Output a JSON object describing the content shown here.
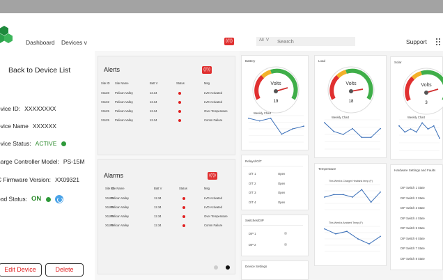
{
  "nav": {
    "dashboard": "Dashboard",
    "devices": "Devices",
    "devices_caret": "v",
    "alarm_badge": "((!))",
    "search_scope": "All",
    "search_caret": "V",
    "search_placeholder": "Search",
    "support": "Support"
  },
  "device": {
    "back": "Back to Device List",
    "id_label": "evice ID:",
    "id_value": "XXXXXXXX",
    "name_label": "evice Name",
    "name_value": "XXXXXX",
    "status_label": "evice Status:",
    "status_value": "ACTIVE",
    "model_label": "harge Controller Model:",
    "model_value": "PS-15M",
    "firmware_label": "C Firmware Version:",
    "firmware_value": "XX09321",
    "load_label": "oad Status:",
    "load_value": "ON",
    "edit": "Edit Device",
    "delete": "Delete"
  },
  "alerts": {
    "title": "Alerts",
    "badge": "((!))",
    "headers": [
      "Site ID",
      "Site Name",
      "Batt V",
      "Status",
      "Msg"
    ],
    "rows": [
      {
        "id": "X1128",
        "name": "Pelican Valley",
        "batt": "12.34",
        "msg": "LVD Activated"
      },
      {
        "id": "X1132",
        "name": "Pelican Valley",
        "batt": "12.34",
        "msg": "LVD Activated"
      },
      {
        "id": "X1125",
        "name": "Pelican Valley",
        "batt": "12.34",
        "msg": "Over Temperature"
      },
      {
        "id": "X1125",
        "name": "Pelican Valley",
        "batt": "12.34",
        "msg": "Comm Failure"
      }
    ]
  },
  "alarms": {
    "title": "Alarms",
    "badge": "((!))",
    "headers": [
      "Site ID",
      "Site Name",
      "Batt V",
      "Status",
      "Msg"
    ],
    "rows": [
      {
        "id": "X1103",
        "name": "Pelican Valley",
        "batt": "12.34",
        "msg": "LVD Activated"
      },
      {
        "id": "X1103",
        "name": "Pelican Valley",
        "batt": "12.34",
        "msg": "LVD Activated"
      },
      {
        "id": "X1103",
        "name": "Pelican Valley",
        "batt": "12.34",
        "msg": "Over Temperature"
      },
      {
        "id": "X1102",
        "name": "Pelican Valley",
        "batt": "12.34",
        "msg": "Comm Failure"
      }
    ]
  },
  "cards": {
    "battery": {
      "title": "Battery",
      "gauge_label": "Volts",
      "gauge_value": "19",
      "chart_title": "Weekly Chart",
      "values": [
        9,
        8,
        9,
        3,
        5,
        6
      ]
    },
    "load": {
      "title": "Load",
      "gauge_label": "Volts",
      "gauge_value": "18",
      "chart_title": "Weekly Chart",
      "values": [
        9,
        6,
        5,
        7,
        4,
        4,
        7
      ]
    },
    "solar": {
      "title": "Solar",
      "gauge_label": "Volts",
      "gauge_value": "3",
      "chart_title": "Weekly Chart",
      "values": [
        8,
        6,
        7,
        6,
        9,
        7,
        8,
        4
      ]
    },
    "relays": {
      "title": "Relays/IO/T",
      "items": [
        {
          "label": "O/T 1",
          "value": "Open"
        },
        {
          "label": "O/T 2",
          "value": "Open"
        },
        {
          "label": "O/T 3",
          "value": "Open"
        },
        {
          "label": "O/T 4",
          "value": "Open"
        }
      ]
    },
    "switches": {
      "title": "Switches/DIP",
      "items": [
        {
          "label": "DIP 1"
        },
        {
          "label": "DIP 2"
        }
      ]
    },
    "device_settings": {
      "title": "Device Settings"
    },
    "temperature": {
      "title": "Temperature",
      "chart1_title": "This Week's Charger Heatsink temp (F)",
      "chart1_values": [
        5,
        6,
        6,
        5,
        8,
        3,
        7
      ],
      "chart2_title": "This Week's Ambient Temp (F)",
      "chart2_values": [
        9,
        7,
        8,
        5,
        3,
        6
      ]
    },
    "hardware": {
      "title": "Hardware Settings and Faults",
      "items": [
        "DIP Switch 1 State",
        "DIP Switch 2 State",
        "DIP Switch 3 State",
        "DIP Switch 4 State",
        "DIP Switch 5 State",
        "DIP Switch 6 State",
        "DIP Switch 7 State",
        "DIP Switch 8 State"
      ]
    }
  }
}
